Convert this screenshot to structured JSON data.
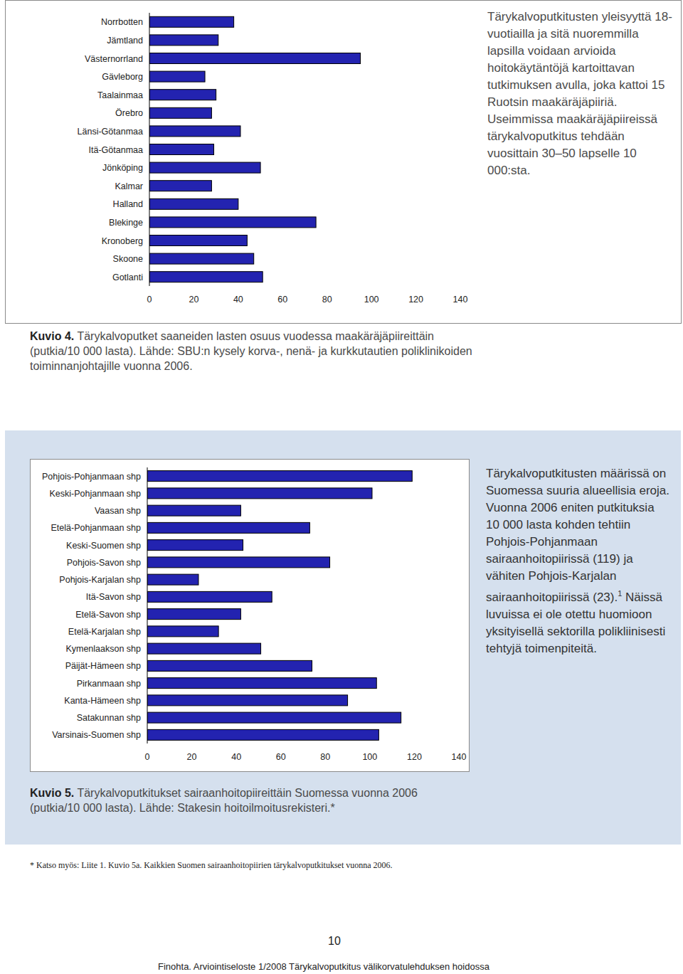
{
  "chart_data": [
    {
      "type": "bar",
      "orientation": "horizontal",
      "title": "Kuvio 4. Tärykalvoputket saaneiden lasten osuus vuodessa maakäräjäpiireittäin (putkia/10 000 lasta). Lähde: SBU:n kysely korva-, nenä- ja kurkkutautien poliklinikoiden toiminnanjohtajille vuonna 2006.",
      "categories": [
        "Norrbotten",
        "Jämtland",
        "Västernorrland",
        "Gävleborg",
        "Taalainmaa",
        "Örebro",
        "Länsi-Götanmaa",
        "Itä-Götanmaa",
        "Jönköping",
        "Kalmar",
        "Halland",
        "Blekinge",
        "Kronoberg",
        "Skoone",
        "Gotlanti"
      ],
      "values": [
        38,
        31,
        95,
        25,
        30,
        28,
        41,
        29,
        50,
        28,
        40,
        75,
        44,
        47,
        51
      ],
      "color": "#2323b0",
      "xlim": [
        0,
        140
      ],
      "xticks": [
        0,
        20,
        40,
        60,
        80,
        100,
        120,
        140
      ],
      "grid": false
    },
    {
      "type": "bar",
      "orientation": "horizontal",
      "title": "Kuvio 5. Tärykalvoputkitukset sairaanhoitopiireittäin Suomessa vuonna 2006 (putkia/10 000 lasta). Lähde: Stakesin hoitoilmoitusrekisteri.*",
      "categories": [
        "Pohjois-Pohjanmaan shp",
        "Keski-Pohjanmaan shp",
        "Vaasan shp",
        "Etelä-Pohjanmaan shp",
        "Keski-Suomen shp",
        "Pohjois-Savon shp",
        "Pohjois-Karjalan shp",
        "Itä-Savon shp",
        "Etelä-Savon shp",
        "Etelä-Karjalan shp",
        "Kymenlaakson shp",
        "Päijät-Hämeen shp",
        "Pirkanmaan shp",
        "Kanta-Hämeen shp",
        "Satakunnan shp",
        "Varsinais-Suomen shp"
      ],
      "values": [
        119,
        101,
        42,
        73,
        43,
        82,
        23,
        56,
        42,
        32,
        51,
        74,
        103,
        90,
        114,
        104
      ],
      "color": "#2323b0",
      "xlim": [
        0,
        140
      ],
      "xticks": [
        0,
        20,
        40,
        60,
        80,
        100,
        120,
        140
      ],
      "grid": false
    }
  ],
  "document": {
    "side_text_1": "Tärykalvoputkitusten yleisyyttä 18-vuotiailla ja sitä nuoremmilla lapsilla voidaan arvioida hoitokäytäntöjä kartoittavan tutkimuksen avulla, joka kattoi 15 Ruotsin maakäräjäpiiriä. Useimmissa maakäräjäpiireissä tärykalvoputkitus tehdään vuosittain 30–50 lapselle 10 000:sta.",
    "side_text_2": {
      "before": "Tärykalvoputkitusten määrissä on Suomessa suuria alueellisia eroja. Vuonna 2006 eniten putkituksia 10 000 lasta kohden tehtiin Pohjois-Pohjanmaan sairaanhoitopiirissä (119) ja vähiten Pohjois-Karjalan sairaanhoitopiirissä (23).",
      "sup": "1",
      "after": " Näissä luvuissa ei ole otettu huomioon yksityisellä sektorilla polikliinisesti tehtyjä toimenpiteitä."
    },
    "footnote": "* Katso myös: Liite 1. Kuvio 5a. Kaikkien Suomen sairaanhoitopiirien tärykalvoputkitukset vuonna 2006.",
    "page_number": 10,
    "footer": "Finohta. Arviointiseloste 1/2008 Tärykalvoputkitus välikorvatulehduksen hoidossa"
  }
}
